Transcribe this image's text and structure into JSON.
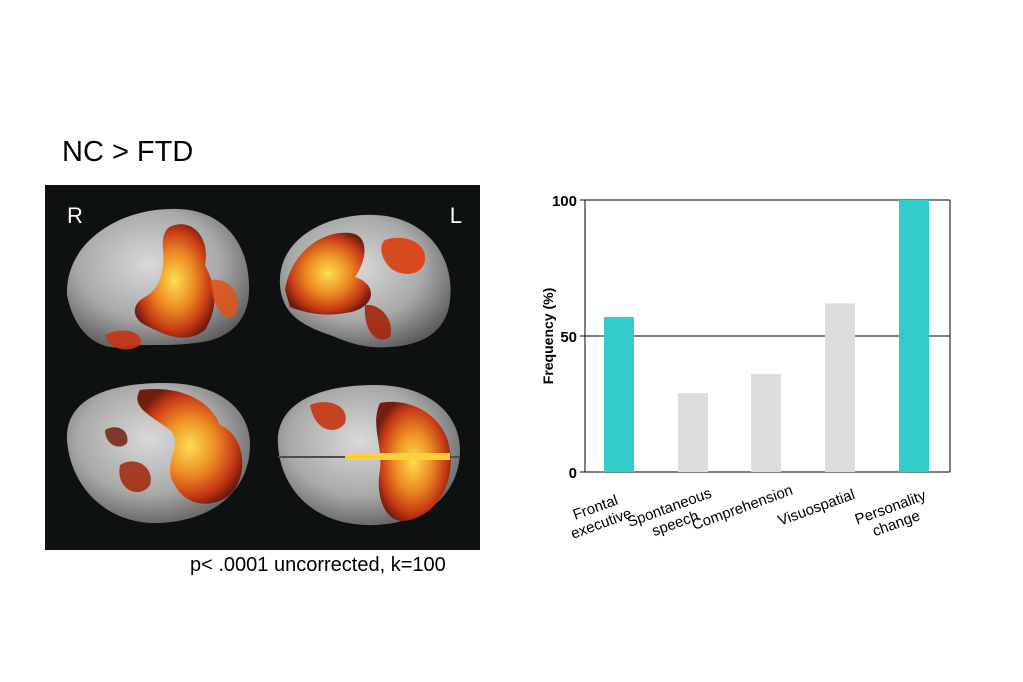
{
  "figure": {
    "title": "NC > FTD",
    "left_label": "R",
    "right_label": "L",
    "caption": "p< .0001 uncorrected, k=100"
  },
  "colors": {
    "highlight_bar": "#33cccc",
    "gray_bar": "#dddddd",
    "brain_bg": "#0e1112",
    "activation_dark": "#7a1a08",
    "activation_mid": "#e0501a",
    "activation_bright": "#ffd23a"
  },
  "chart_data": {
    "type": "bar",
    "categories": [
      [
        "Frontal",
        "executive"
      ],
      [
        "Spontaneous",
        "speech"
      ],
      [
        "Comprehension"
      ],
      [
        "Visuospatial"
      ],
      [
        "Personality",
        "change"
      ]
    ],
    "values": [
      57,
      29,
      36,
      62,
      100
    ],
    "bar_colors": [
      "#33cccc",
      "#dddddd",
      "#dddddd",
      "#dddddd",
      "#33cccc"
    ],
    "ylabel": "Frequency (%)",
    "xlabel": "",
    "ylim": [
      0,
      100
    ],
    "yticks": [
      0,
      50,
      100
    ],
    "grid": "horizontal lines at 50 and 100"
  }
}
